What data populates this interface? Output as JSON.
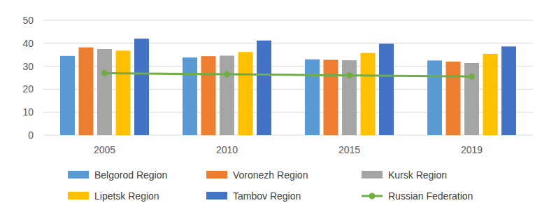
{
  "chart_data": {
    "type": "bar",
    "categories": [
      "2005",
      "2010",
      "2015",
      "2019"
    ],
    "series": [
      {
        "name": "Belgorod Region",
        "color": "#5b9bd5",
        "type": "bar",
        "values": [
          34.5,
          33.8,
          33.0,
          32.5
        ]
      },
      {
        "name": "Voronezh Region",
        "color": "#ed7d31",
        "type": "bar",
        "values": [
          38.2,
          34.4,
          32.8,
          32.0
        ]
      },
      {
        "name": "Kursk Region",
        "color": "#a5a5a5",
        "type": "bar",
        "values": [
          37.5,
          34.6,
          32.6,
          31.4
        ]
      },
      {
        "name": "Lipetsk Region",
        "color": "#ffc000",
        "type": "bar",
        "values": [
          36.8,
          36.2,
          35.8,
          35.4
        ]
      },
      {
        "name": "Tambov Region",
        "color": "#4472c4",
        "type": "bar",
        "values": [
          42.0,
          41.2,
          39.8,
          38.6
        ]
      },
      {
        "name": "Russian Federation",
        "color": "#70ad47",
        "type": "line",
        "marker": "circle",
        "values": [
          27.0,
          26.5,
          26.0,
          25.5
        ]
      }
    ],
    "ylim": [
      0,
      50
    ],
    "yticks": [
      0,
      10,
      20,
      30,
      40,
      50
    ],
    "grid": true,
    "legend": "bottom"
  }
}
